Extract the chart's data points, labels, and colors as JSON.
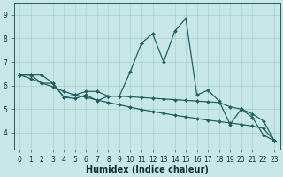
{
  "xlabel": "Humidex (Indice chaleur)",
  "xlim": [
    -0.5,
    23.5
  ],
  "ylim": [
    3.3,
    9.5
  ],
  "xticks": [
    0,
    1,
    2,
    3,
    4,
    5,
    6,
    7,
    8,
    9,
    10,
    11,
    12,
    13,
    14,
    15,
    16,
    17,
    18,
    19,
    20,
    21,
    22,
    23
  ],
  "yticks": [
    4,
    5,
    6,
    7,
    8,
    9
  ],
  "bg_color": "#c8e8e8",
  "grid_color": "#a8d0d0",
  "line_color": "#206060",
  "line1_y": [
    6.45,
    6.45,
    6.45,
    6.1,
    5.5,
    5.6,
    5.75,
    5.75,
    5.55,
    5.55,
    6.6,
    7.8,
    8.2,
    7.0,
    8.3,
    8.85,
    5.6,
    5.8,
    5.35,
    4.35,
    5.0,
    4.65,
    3.9,
    3.65
  ],
  "line2_y": [
    6.45,
    6.45,
    6.1,
    6.1,
    5.5,
    5.45,
    5.6,
    5.35,
    5.55,
    5.55,
    5.52,
    5.49,
    5.46,
    5.43,
    5.4,
    5.37,
    5.34,
    5.31,
    5.28,
    5.1,
    5.0,
    4.8,
    4.5,
    3.65
  ],
  "line3_y": [
    6.45,
    6.3,
    6.1,
    5.95,
    5.75,
    5.6,
    5.5,
    5.38,
    5.28,
    5.18,
    5.08,
    4.98,
    4.9,
    4.82,
    4.74,
    4.67,
    4.6,
    4.53,
    4.47,
    4.41,
    4.35,
    4.28,
    4.18,
    3.65
  ],
  "marker": "D",
  "markersize": 2.0,
  "linewidth": 0.9,
  "xlabel_fontsize": 7.0,
  "xlabel_fontweight": "bold",
  "tick_labelsize": 5.5,
  "xlabel_color": "#103030"
}
